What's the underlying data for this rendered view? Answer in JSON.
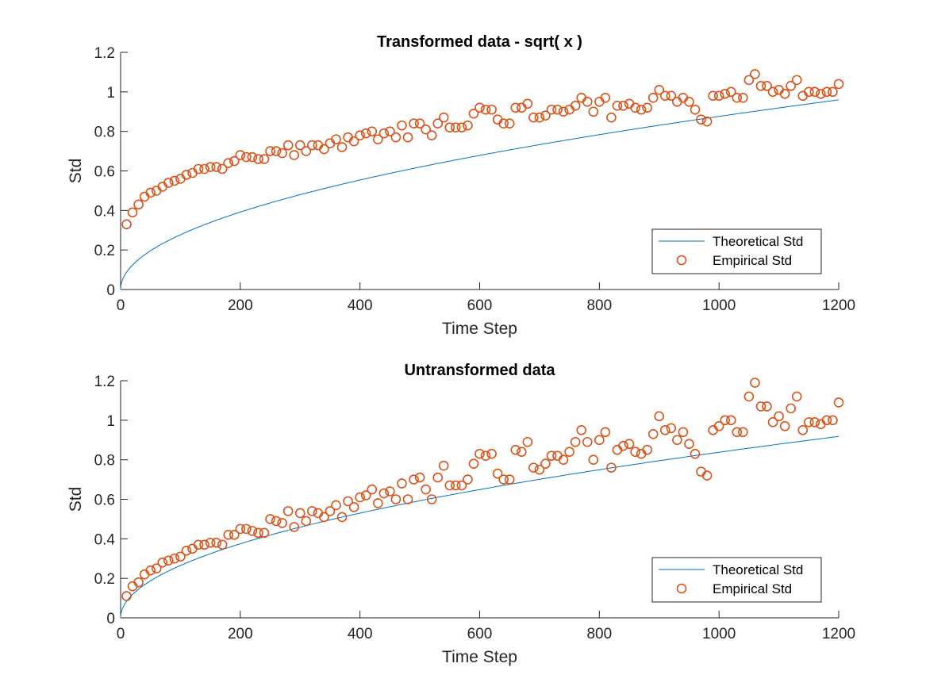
{
  "figure": {
    "background_color": "#ffffff",
    "axis_color": "#262626",
    "theoretical_color": "#0072BD",
    "empirical_color": "#D95319"
  },
  "chart_data": [
    {
      "type": "scatter",
      "title": "Transformed data - sqrt( x )",
      "xlabel": "Time Step",
      "ylabel": "Std",
      "xlim": [
        0,
        1200
      ],
      "ylim": [
        0,
        1.2
      ],
      "xticks": [
        0,
        200,
        400,
        600,
        800,
        1000,
        1200
      ],
      "yticks": [
        0,
        0.2,
        0.4,
        0.6,
        0.8,
        1,
        1.2
      ],
      "xtick_labels": [
        "0",
        "200",
        "400",
        "600",
        "800",
        "1000",
        "1200"
      ],
      "ytick_labels": [
        "0",
        "0.2",
        "0.4",
        "0.6",
        "0.8",
        "1",
        "1.2"
      ],
      "grid": false,
      "box": false,
      "legend_placement": "bottom-right",
      "series": [
        {
          "name": "Theoretical Std",
          "style": "line",
          "curve": "sqrt",
          "coef": 0.0277,
          "x": [
            0,
            1,
            2,
            5,
            10,
            20,
            40,
            60,
            80,
            100,
            150,
            200,
            250,
            300,
            400,
            500,
            600,
            700,
            800,
            900,
            1000,
            1100,
            1200
          ],
          "y": [
            0,
            0.028,
            0.039,
            0.062,
            0.088,
            0.124,
            0.175,
            0.215,
            0.248,
            0.277,
            0.339,
            0.392,
            0.438,
            0.48,
            0.554,
            0.619,
            0.679,
            0.733,
            0.783,
            0.831,
            0.876,
            0.919,
            0.96
          ]
        },
        {
          "name": "Empirical Std",
          "style": "marker",
          "x": [
            10,
            20,
            30,
            40,
            50,
            60,
            70,
            80,
            90,
            100,
            110,
            120,
            130,
            140,
            150,
            160,
            170,
            180,
            190,
            200,
            210,
            220,
            230,
            240,
            250,
            260,
            270,
            280,
            290,
            300,
            310,
            320,
            330,
            340,
            350,
            360,
            370,
            380,
            390,
            400,
            410,
            420,
            430,
            440,
            450,
            460,
            470,
            480,
            490,
            500,
            510,
            520,
            530,
            540,
            550,
            560,
            570,
            580,
            590,
            600,
            610,
            620,
            630,
            640,
            650,
            660,
            670,
            680,
            690,
            700,
            710,
            720,
            730,
            740,
            750,
            760,
            770,
            780,
            790,
            800,
            810,
            820,
            830,
            840,
            850,
            860,
            870,
            880,
            890,
            900,
            910,
            920,
            930,
            940,
            950,
            960,
            970,
            980,
            990,
            1000,
            1010,
            1020,
            1030,
            1040,
            1050,
            1060,
            1070,
            1080,
            1090,
            1100,
            1110,
            1120,
            1130,
            1140,
            1150,
            1160,
            1170,
            1180,
            1190,
            1200
          ],
          "y": [
            0.33,
            0.39,
            0.43,
            0.47,
            0.49,
            0.5,
            0.52,
            0.54,
            0.55,
            0.56,
            0.58,
            0.59,
            0.61,
            0.61,
            0.62,
            0.62,
            0.61,
            0.64,
            0.65,
            0.68,
            0.67,
            0.67,
            0.66,
            0.66,
            0.7,
            0.7,
            0.69,
            0.73,
            0.68,
            0.73,
            0.7,
            0.73,
            0.73,
            0.71,
            0.74,
            0.76,
            0.72,
            0.77,
            0.75,
            0.78,
            0.79,
            0.8,
            0.76,
            0.79,
            0.8,
            0.77,
            0.83,
            0.77,
            0.84,
            0.84,
            0.81,
            0.78,
            0.84,
            0.87,
            0.82,
            0.82,
            0.82,
            0.83,
            0.89,
            0.92,
            0.91,
            0.91,
            0.86,
            0.84,
            0.84,
            0.92,
            0.92,
            0.94,
            0.87,
            0.87,
            0.88,
            0.91,
            0.91,
            0.9,
            0.91,
            0.93,
            0.97,
            0.95,
            0.9,
            0.95,
            0.97,
            0.87,
            0.93,
            0.93,
            0.94,
            0.92,
            0.91,
            0.92,
            0.97,
            1.01,
            0.98,
            0.98,
            0.95,
            0.97,
            0.95,
            0.91,
            0.86,
            0.85,
            0.98,
            0.98,
            0.99,
            1.0,
            0.97,
            0.97,
            1.06,
            1.09,
            1.03,
            1.03,
            1.0,
            1.01,
            0.99,
            1.03,
            1.06,
            0.98,
            1.0,
            1.0,
            0.99,
            1.0,
            1.0,
            1.04
          ]
        }
      ]
    },
    {
      "type": "scatter",
      "title": "Untransformed data",
      "xlabel": "Time Step",
      "ylabel": "Std",
      "xlim": [
        0,
        1200
      ],
      "ylim": [
        0,
        1.2
      ],
      "xticks": [
        0,
        200,
        400,
        600,
        800,
        1000,
        1200
      ],
      "yticks": [
        0,
        0.2,
        0.4,
        0.6,
        0.8,
        1,
        1.2
      ],
      "xtick_labels": [
        "0",
        "200",
        "400",
        "600",
        "800",
        "1000",
        "1200"
      ],
      "ytick_labels": [
        "0",
        "0.2",
        "0.4",
        "0.6",
        "0.8",
        "1",
        "1.2"
      ],
      "grid": false,
      "box": false,
      "legend_placement": "bottom-right",
      "series": [
        {
          "name": "Theoretical Std",
          "style": "line",
          "curve": "sqrt",
          "coef": 0.0265,
          "x": [
            0,
            1,
            2,
            5,
            10,
            20,
            40,
            60,
            80,
            100,
            150,
            200,
            250,
            300,
            400,
            500,
            600,
            700,
            800,
            900,
            1000,
            1100,
            1200
          ],
          "y": [
            0,
            0.027,
            0.037,
            0.059,
            0.084,
            0.119,
            0.168,
            0.205,
            0.237,
            0.265,
            0.325,
            0.375,
            0.419,
            0.459,
            0.53,
            0.593,
            0.649,
            0.701,
            0.75,
            0.795,
            0.838,
            0.879,
            0.918
          ]
        },
        {
          "name": "Empirical Std",
          "style": "marker",
          "x": [
            10,
            20,
            30,
            40,
            50,
            60,
            70,
            80,
            90,
            100,
            110,
            120,
            130,
            140,
            150,
            160,
            170,
            180,
            190,
            200,
            210,
            220,
            230,
            240,
            250,
            260,
            270,
            280,
            290,
            300,
            310,
            320,
            330,
            340,
            350,
            360,
            370,
            380,
            390,
            400,
            410,
            420,
            430,
            440,
            450,
            460,
            470,
            480,
            490,
            500,
            510,
            520,
            530,
            540,
            550,
            560,
            570,
            580,
            590,
            600,
            610,
            620,
            630,
            640,
            650,
            660,
            670,
            680,
            690,
            700,
            710,
            720,
            730,
            740,
            750,
            760,
            770,
            780,
            790,
            800,
            810,
            820,
            830,
            840,
            850,
            860,
            870,
            880,
            890,
            900,
            910,
            920,
            930,
            940,
            950,
            960,
            970,
            980,
            990,
            1000,
            1010,
            1020,
            1030,
            1040,
            1050,
            1060,
            1070,
            1080,
            1090,
            1100,
            1110,
            1120,
            1130,
            1140,
            1150,
            1160,
            1170,
            1180,
            1190,
            1200
          ],
          "y": [
            0.11,
            0.16,
            0.18,
            0.22,
            0.24,
            0.25,
            0.28,
            0.29,
            0.3,
            0.31,
            0.34,
            0.35,
            0.37,
            0.37,
            0.38,
            0.38,
            0.37,
            0.42,
            0.42,
            0.45,
            0.45,
            0.44,
            0.43,
            0.43,
            0.5,
            0.49,
            0.48,
            0.54,
            0.46,
            0.53,
            0.49,
            0.54,
            0.53,
            0.51,
            0.54,
            0.57,
            0.51,
            0.59,
            0.56,
            0.61,
            0.62,
            0.65,
            0.58,
            0.63,
            0.64,
            0.6,
            0.68,
            0.6,
            0.7,
            0.71,
            0.65,
            0.6,
            0.71,
            0.77,
            0.67,
            0.67,
            0.67,
            0.7,
            0.78,
            0.83,
            0.82,
            0.83,
            0.73,
            0.7,
            0.7,
            0.85,
            0.84,
            0.89,
            0.76,
            0.75,
            0.78,
            0.82,
            0.82,
            0.8,
            0.84,
            0.89,
            0.95,
            0.89,
            0.8,
            0.9,
            0.94,
            0.76,
            0.85,
            0.87,
            0.88,
            0.84,
            0.83,
            0.85,
            0.93,
            1.02,
            0.95,
            0.96,
            0.9,
            0.94,
            0.88,
            0.83,
            0.74,
            0.72,
            0.95,
            0.97,
            1.0,
            1.0,
            0.94,
            0.94,
            1.12,
            1.19,
            1.07,
            1.07,
            0.99,
            1.02,
            0.97,
            1.06,
            1.12,
            0.95,
            0.99,
            0.99,
            0.98,
            1.0,
            1.0,
            1.09
          ]
        }
      ]
    }
  ]
}
